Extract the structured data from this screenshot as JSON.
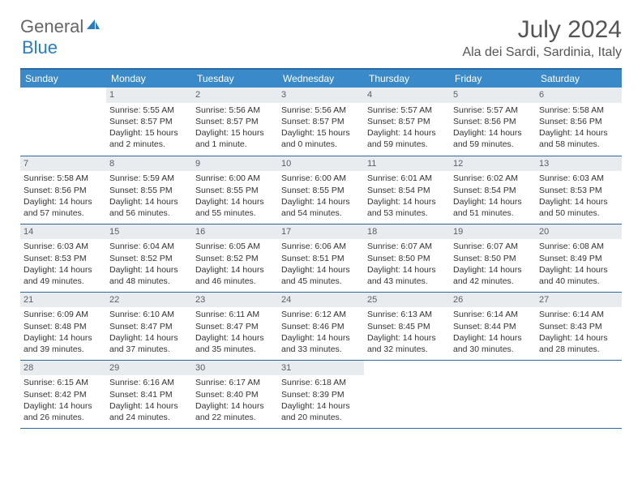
{
  "brand": {
    "part1": "General",
    "part2": "Blue"
  },
  "title": "July 2024",
  "location": "Ala dei Sardi, Sardinia, Italy",
  "colors": {
    "header_bg": "#3a8ac9",
    "header_border": "#2b6aa0",
    "daynum_bg": "#e9ecef",
    "text": "#333333",
    "brand_gray": "#666666",
    "brand_blue": "#2b7bbf"
  },
  "weekdays": [
    "Sunday",
    "Monday",
    "Tuesday",
    "Wednesday",
    "Thursday",
    "Friday",
    "Saturday"
  ],
  "first_weekday_index": 1,
  "days": [
    {
      "n": 1,
      "sunrise": "5:55 AM",
      "sunset": "8:57 PM",
      "daylight": "15 hours and 2 minutes."
    },
    {
      "n": 2,
      "sunrise": "5:56 AM",
      "sunset": "8:57 PM",
      "daylight": "15 hours and 1 minute."
    },
    {
      "n": 3,
      "sunrise": "5:56 AM",
      "sunset": "8:57 PM",
      "daylight": "15 hours and 0 minutes."
    },
    {
      "n": 4,
      "sunrise": "5:57 AM",
      "sunset": "8:57 PM",
      "daylight": "14 hours and 59 minutes."
    },
    {
      "n": 5,
      "sunrise": "5:57 AM",
      "sunset": "8:56 PM",
      "daylight": "14 hours and 59 minutes."
    },
    {
      "n": 6,
      "sunrise": "5:58 AM",
      "sunset": "8:56 PM",
      "daylight": "14 hours and 58 minutes."
    },
    {
      "n": 7,
      "sunrise": "5:58 AM",
      "sunset": "8:56 PM",
      "daylight": "14 hours and 57 minutes."
    },
    {
      "n": 8,
      "sunrise": "5:59 AM",
      "sunset": "8:55 PM",
      "daylight": "14 hours and 56 minutes."
    },
    {
      "n": 9,
      "sunrise": "6:00 AM",
      "sunset": "8:55 PM",
      "daylight": "14 hours and 55 minutes."
    },
    {
      "n": 10,
      "sunrise": "6:00 AM",
      "sunset": "8:55 PM",
      "daylight": "14 hours and 54 minutes."
    },
    {
      "n": 11,
      "sunrise": "6:01 AM",
      "sunset": "8:54 PM",
      "daylight": "14 hours and 53 minutes."
    },
    {
      "n": 12,
      "sunrise": "6:02 AM",
      "sunset": "8:54 PM",
      "daylight": "14 hours and 51 minutes."
    },
    {
      "n": 13,
      "sunrise": "6:03 AM",
      "sunset": "8:53 PM",
      "daylight": "14 hours and 50 minutes."
    },
    {
      "n": 14,
      "sunrise": "6:03 AM",
      "sunset": "8:53 PM",
      "daylight": "14 hours and 49 minutes."
    },
    {
      "n": 15,
      "sunrise": "6:04 AM",
      "sunset": "8:52 PM",
      "daylight": "14 hours and 48 minutes."
    },
    {
      "n": 16,
      "sunrise": "6:05 AM",
      "sunset": "8:52 PM",
      "daylight": "14 hours and 46 minutes."
    },
    {
      "n": 17,
      "sunrise": "6:06 AM",
      "sunset": "8:51 PM",
      "daylight": "14 hours and 45 minutes."
    },
    {
      "n": 18,
      "sunrise": "6:07 AM",
      "sunset": "8:50 PM",
      "daylight": "14 hours and 43 minutes."
    },
    {
      "n": 19,
      "sunrise": "6:07 AM",
      "sunset": "8:50 PM",
      "daylight": "14 hours and 42 minutes."
    },
    {
      "n": 20,
      "sunrise": "6:08 AM",
      "sunset": "8:49 PM",
      "daylight": "14 hours and 40 minutes."
    },
    {
      "n": 21,
      "sunrise": "6:09 AM",
      "sunset": "8:48 PM",
      "daylight": "14 hours and 39 minutes."
    },
    {
      "n": 22,
      "sunrise": "6:10 AM",
      "sunset": "8:47 PM",
      "daylight": "14 hours and 37 minutes."
    },
    {
      "n": 23,
      "sunrise": "6:11 AM",
      "sunset": "8:47 PM",
      "daylight": "14 hours and 35 minutes."
    },
    {
      "n": 24,
      "sunrise": "6:12 AM",
      "sunset": "8:46 PM",
      "daylight": "14 hours and 33 minutes."
    },
    {
      "n": 25,
      "sunrise": "6:13 AM",
      "sunset": "8:45 PM",
      "daylight": "14 hours and 32 minutes."
    },
    {
      "n": 26,
      "sunrise": "6:14 AM",
      "sunset": "8:44 PM",
      "daylight": "14 hours and 30 minutes."
    },
    {
      "n": 27,
      "sunrise": "6:14 AM",
      "sunset": "8:43 PM",
      "daylight": "14 hours and 28 minutes."
    },
    {
      "n": 28,
      "sunrise": "6:15 AM",
      "sunset": "8:42 PM",
      "daylight": "14 hours and 26 minutes."
    },
    {
      "n": 29,
      "sunrise": "6:16 AM",
      "sunset": "8:41 PM",
      "daylight": "14 hours and 24 minutes."
    },
    {
      "n": 30,
      "sunrise": "6:17 AM",
      "sunset": "8:40 PM",
      "daylight": "14 hours and 22 minutes."
    },
    {
      "n": 31,
      "sunrise": "6:18 AM",
      "sunset": "8:39 PM",
      "daylight": "14 hours and 20 minutes."
    }
  ],
  "labels": {
    "sunrise": "Sunrise: ",
    "sunset": "Sunset: ",
    "daylight": "Daylight: "
  }
}
